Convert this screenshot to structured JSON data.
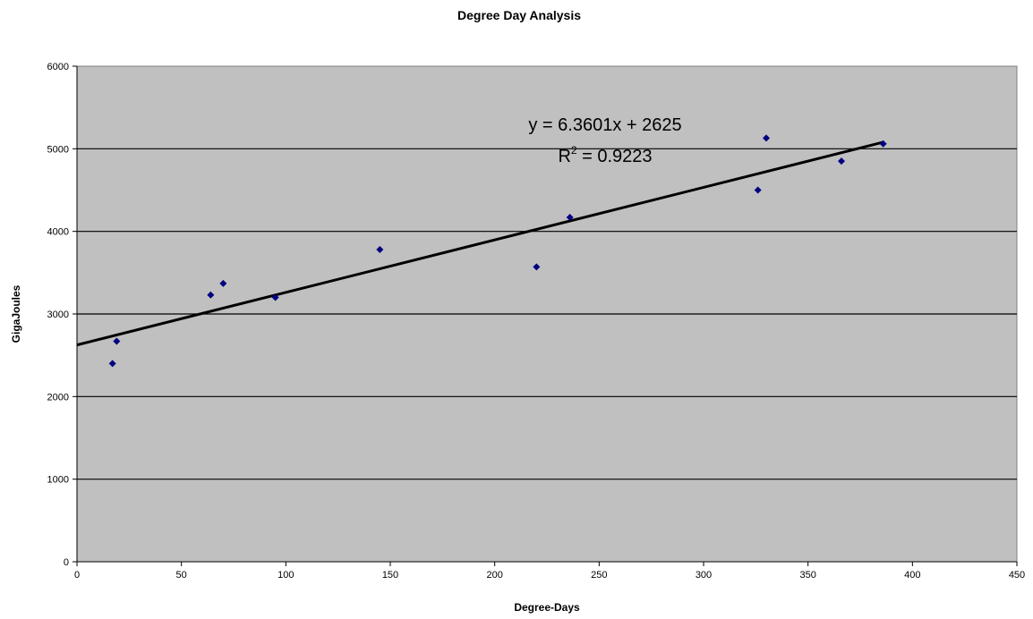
{
  "chart_data": {
    "type": "scatter",
    "title": "Degree Day Analysis",
    "xlabel": "Degree-Days",
    "ylabel": "GigaJoules",
    "xlim": [
      0,
      450
    ],
    "ylim": [
      0,
      6000
    ],
    "x_ticks": [
      0,
      50,
      100,
      150,
      200,
      250,
      300,
      350,
      400,
      450
    ],
    "y_ticks": [
      0,
      1000,
      2000,
      3000,
      4000,
      5000,
      6000
    ],
    "grid": "horizontal",
    "plot_background": "#c0c0c0",
    "point_color": "#000080",
    "trendline_color": "#000000",
    "points": [
      {
        "x": 17,
        "y": 2400
      },
      {
        "x": 19,
        "y": 2670
      },
      {
        "x": 64,
        "y": 3230
      },
      {
        "x": 70,
        "y": 3370
      },
      {
        "x": 95,
        "y": 3200
      },
      {
        "x": 145,
        "y": 3780
      },
      {
        "x": 220,
        "y": 3570
      },
      {
        "x": 236,
        "y": 4170
      },
      {
        "x": 326,
        "y": 4500
      },
      {
        "x": 330,
        "y": 5130
      },
      {
        "x": 366,
        "y": 4850
      },
      {
        "x": 386,
        "y": 5060
      }
    ],
    "trendline": {
      "slope": 6.3601,
      "intercept": 2625,
      "x_range": [
        0,
        386
      ],
      "equation_label": "y = 6.3601x + 2625",
      "r2_prefix": "R",
      "r2_sup": "2",
      "r2_value": " = 0.9223"
    }
  }
}
